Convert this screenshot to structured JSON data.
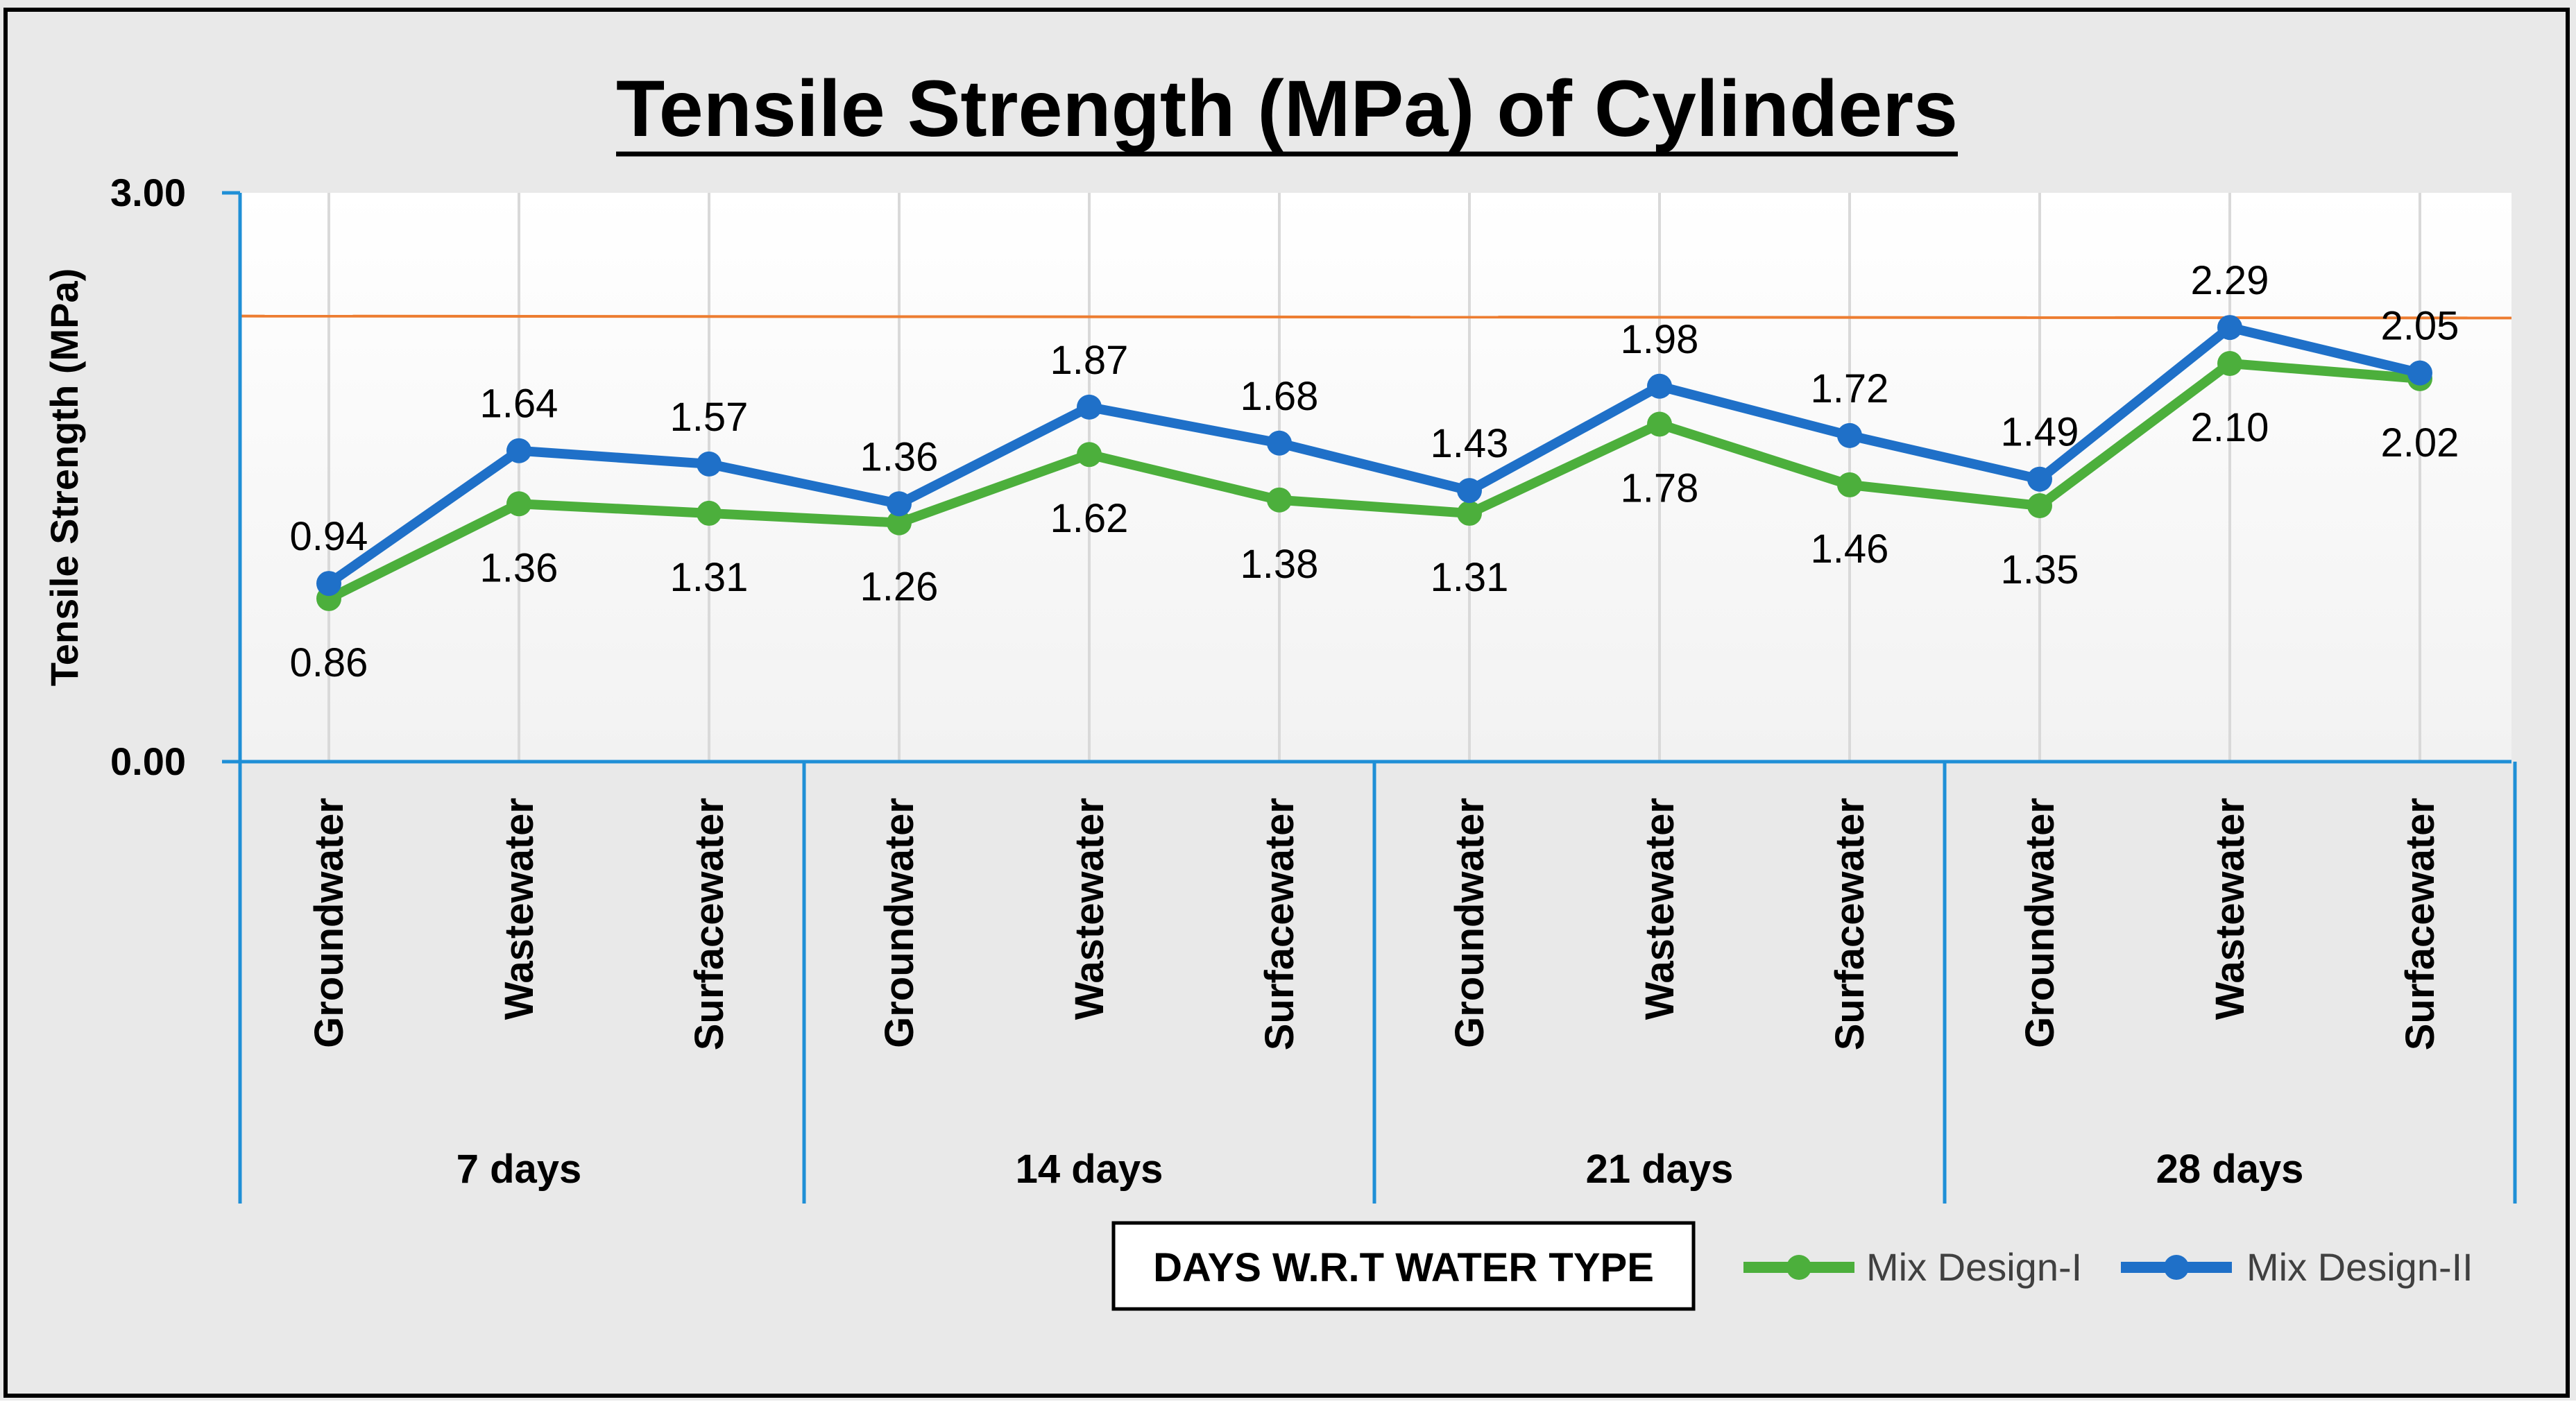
{
  "colors": {
    "page_background": "#e9e9e9",
    "frame": "#000000",
    "plot_background": "#ffffff",
    "axis": "#1f8fd6",
    "gridline": "#d9d9d9",
    "reference_line": "#ed7d31",
    "series_1": "#4caf3c",
    "series_2": "#1f70c8"
  },
  "chart_data": {
    "type": "line",
    "title": "Tensile Strength (MPa) of Cylinders",
    "ylabel": "Tensile Strength (MPa)",
    "xlabel": "DAYS W.R.T WATER TYPE",
    "ylim": [
      0,
      3
    ],
    "y_ticks": [
      "0.00",
      "3.00"
    ],
    "groups": [
      "7 days",
      "14 days",
      "21 days",
      "28 days"
    ],
    "categories": [
      "Groundwater",
      "Wastewater",
      "Surfacewater",
      "Groundwater",
      "Wastewater",
      "Surfacewater",
      "Groundwater",
      "Wastewater",
      "Surfacewater",
      "Groundwater",
      "Wastewater",
      "Surfacewater"
    ],
    "series": [
      {
        "name": "Mix Design-I",
        "values": [
          0.86,
          1.36,
          1.31,
          1.26,
          1.62,
          1.38,
          1.31,
          1.78,
          1.46,
          1.35,
          2.1,
          2.02
        ],
        "labels": [
          "0.86",
          "1.36",
          "1.31",
          "1.26",
          "1.62",
          "1.38",
          "1.31",
          "1.78",
          "1.46",
          "1.35",
          "2.10",
          "2.02"
        ],
        "label_position": "below"
      },
      {
        "name": "Mix Design-II",
        "values": [
          0.94,
          1.64,
          1.57,
          1.36,
          1.87,
          1.68,
          1.43,
          1.98,
          1.72,
          1.49,
          2.29,
          2.05
        ],
        "labels": [
          "0.94",
          "1.64",
          "1.57",
          "1.36",
          "1.87",
          "1.68",
          "1.43",
          "1.98",
          "1.72",
          "1.49",
          "2.29",
          "2.05"
        ],
        "label_position": "above"
      }
    ],
    "reference_line": {
      "y_start": 2.35,
      "y_end": 2.34
    },
    "gridlines": "vertical",
    "legend": "bottom-right"
  }
}
